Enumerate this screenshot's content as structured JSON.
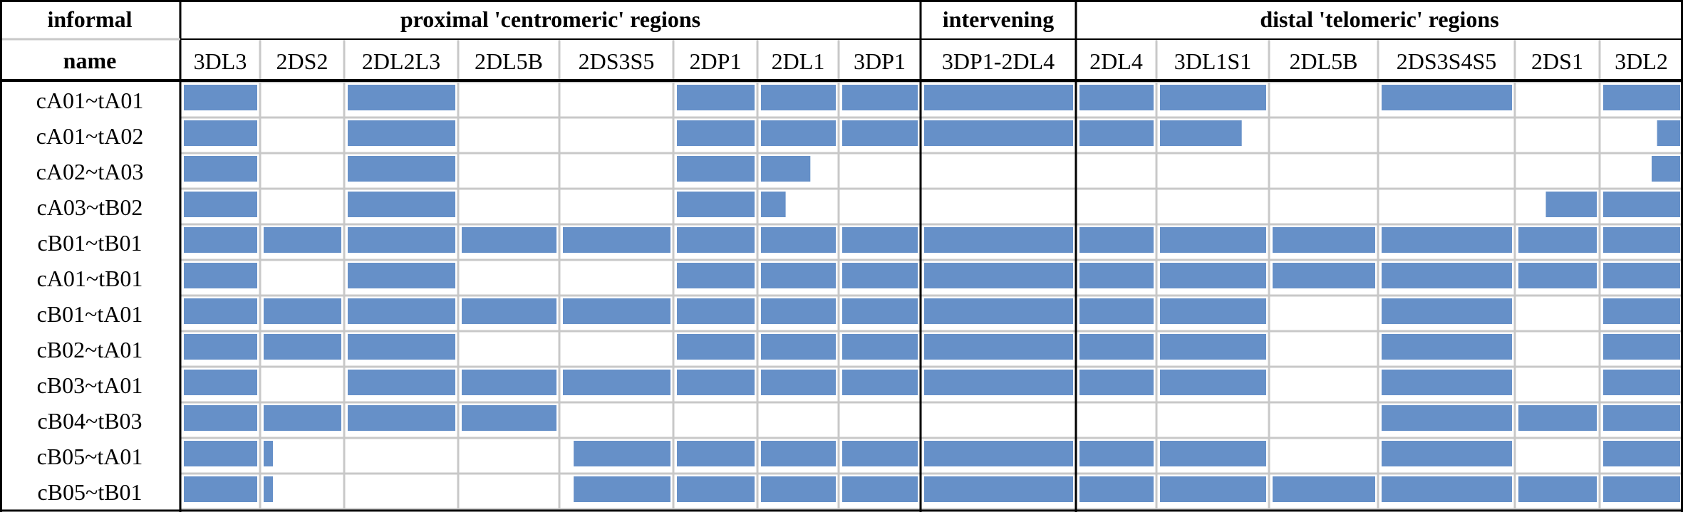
{
  "header": {
    "row1_label": "informal",
    "row2_label": "name",
    "groups": [
      {
        "label": "proximal 'centromeric' regions"
      },
      {
        "label": "intervening"
      },
      {
        "label": "distal 'telomeric' regions"
      }
    ]
  },
  "columns": [
    "3DL3",
    "2DS2",
    "2DL2L3",
    "2DL5B",
    "2DS3S5",
    "2DP1",
    "2DL1",
    "3DP1",
    "3DP1-2DL4",
    "2DL4",
    "3DL1S1",
    "2DL5B",
    "2DS3S4S5",
    "2DS1",
    "3DL2"
  ],
  "bar_color": "#6690c8",
  "rows": [
    {
      "name": "cA01~tA01",
      "cells": [
        [
          0,
          1
        ],
        null,
        [
          0,
          1
        ],
        null,
        null,
        [
          0,
          1
        ],
        [
          0,
          1
        ],
        [
          0,
          1
        ],
        [
          0,
          1
        ],
        [
          0,
          1
        ],
        [
          0,
          1
        ],
        null,
        [
          0,
          1
        ],
        null,
        [
          0,
          1
        ]
      ]
    },
    {
      "name": "cA01~tA02",
      "cells": [
        [
          0,
          1
        ],
        null,
        [
          0,
          1
        ],
        null,
        null,
        [
          0,
          1
        ],
        [
          0,
          1
        ],
        [
          0,
          1
        ],
        [
          0,
          1
        ],
        [
          0,
          1
        ],
        [
          0,
          0.77
        ],
        null,
        null,
        null,
        [
          0.7,
          1
        ]
      ]
    },
    {
      "name": "cA02~tA03",
      "cells": [
        [
          0,
          1
        ],
        null,
        [
          0,
          1
        ],
        null,
        null,
        [
          0,
          1
        ],
        [
          0,
          0.66
        ],
        null,
        null,
        null,
        null,
        null,
        null,
        null,
        [
          0.63,
          1
        ]
      ]
    },
    {
      "name": "cA03~tB02",
      "cells": [
        [
          0,
          1
        ],
        null,
        [
          0,
          1
        ],
        null,
        null,
        [
          0,
          1
        ],
        [
          0,
          0.33
        ],
        null,
        null,
        null,
        null,
        null,
        null,
        [
          0.35,
          1
        ],
        [
          0,
          1
        ]
      ]
    },
    {
      "name": "cB01~tB01",
      "cells": [
        [
          0,
          1
        ],
        [
          0,
          1
        ],
        [
          0,
          1
        ],
        [
          0,
          1
        ],
        [
          0,
          1
        ],
        [
          0,
          1
        ],
        [
          0,
          1
        ],
        [
          0,
          1
        ],
        [
          0,
          1
        ],
        [
          0,
          1
        ],
        [
          0,
          1
        ],
        [
          0,
          1
        ],
        [
          0,
          1
        ],
        [
          0,
          1
        ],
        [
          0,
          1
        ]
      ]
    },
    {
      "name": "cA01~tB01",
      "cells": [
        [
          0,
          1
        ],
        null,
        [
          0,
          1
        ],
        null,
        null,
        [
          0,
          1
        ],
        [
          0,
          1
        ],
        [
          0,
          1
        ],
        [
          0,
          1
        ],
        [
          0,
          1
        ],
        [
          0,
          1
        ],
        [
          0,
          1
        ],
        [
          0,
          1
        ],
        [
          0,
          1
        ],
        [
          0,
          1
        ]
      ]
    },
    {
      "name": "cB01~tA01",
      "cells": [
        [
          0,
          1
        ],
        [
          0,
          1
        ],
        [
          0,
          1
        ],
        [
          0,
          1
        ],
        [
          0,
          1
        ],
        [
          0,
          1
        ],
        [
          0,
          1
        ],
        [
          0,
          1
        ],
        [
          0,
          1
        ],
        [
          0,
          1
        ],
        [
          0,
          1
        ],
        null,
        [
          0,
          1
        ],
        null,
        [
          0,
          1
        ]
      ]
    },
    {
      "name": "cB02~tA01",
      "cells": [
        [
          0,
          1
        ],
        [
          0,
          1
        ],
        [
          0,
          1
        ],
        null,
        null,
        [
          0,
          1
        ],
        [
          0,
          1
        ],
        [
          0,
          1
        ],
        [
          0,
          1
        ],
        [
          0,
          1
        ],
        [
          0,
          1
        ],
        null,
        [
          0,
          1
        ],
        null,
        [
          0,
          1
        ]
      ]
    },
    {
      "name": "cB03~tA01",
      "cells": [
        [
          0,
          1
        ],
        null,
        [
          0,
          1
        ],
        [
          0,
          1
        ],
        [
          0,
          1
        ],
        [
          0,
          1
        ],
        [
          0,
          1
        ],
        [
          0,
          1
        ],
        [
          0,
          1
        ],
        [
          0,
          1
        ],
        [
          0,
          1
        ],
        null,
        [
          0,
          1
        ],
        null,
        [
          0,
          1
        ]
      ]
    },
    {
      "name": "cB04~tB03",
      "cells": [
        [
          0,
          1
        ],
        [
          0,
          1
        ],
        [
          0,
          1
        ],
        [
          0,
          1
        ],
        null,
        null,
        null,
        null,
        null,
        null,
        null,
        null,
        [
          0,
          1
        ],
        [
          0,
          1
        ],
        [
          0,
          1
        ]
      ]
    },
    {
      "name": "cB05~tA01",
      "cells": [
        [
          0,
          1
        ],
        [
          0,
          0.12
        ],
        null,
        null,
        [
          0.1,
          1
        ],
        [
          0,
          1
        ],
        [
          0,
          1
        ],
        [
          0,
          1
        ],
        [
          0,
          1
        ],
        [
          0,
          1
        ],
        [
          0,
          1
        ],
        null,
        [
          0,
          1
        ],
        null,
        [
          0,
          1
        ]
      ]
    },
    {
      "name": "cB05~tB01",
      "cells": [
        [
          0,
          1
        ],
        [
          0,
          0.12
        ],
        null,
        null,
        [
          0.1,
          1
        ],
        [
          0,
          1
        ],
        [
          0,
          1
        ],
        [
          0,
          1
        ],
        [
          0,
          1
        ],
        [
          0,
          1
        ],
        [
          0,
          1
        ],
        [
          0,
          1
        ],
        [
          0,
          1
        ],
        [
          0,
          1
        ],
        [
          0,
          1
        ]
      ]
    }
  ]
}
